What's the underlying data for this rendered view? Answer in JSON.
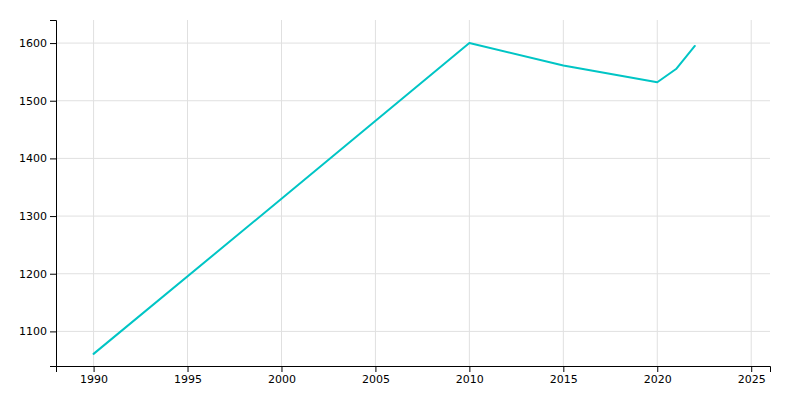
{
  "chart_data": {
    "type": "line",
    "x": [
      1990,
      2000,
      2010,
      2015,
      2020,
      2021,
      2022
    ],
    "values": [
      1061,
      1330,
      1600,
      1561,
      1532,
      1555,
      1595
    ],
    "color": "#00C5C5",
    "xlim": [
      1988,
      2026
    ],
    "ylim": [
      1040,
      1640
    ],
    "xticks": [
      1990,
      1995,
      2000,
      2005,
      2010,
      2015,
      2020,
      2025
    ],
    "yticks": [
      1100,
      1200,
      1300,
      1400,
      1500,
      1600
    ],
    "grid": true
  }
}
